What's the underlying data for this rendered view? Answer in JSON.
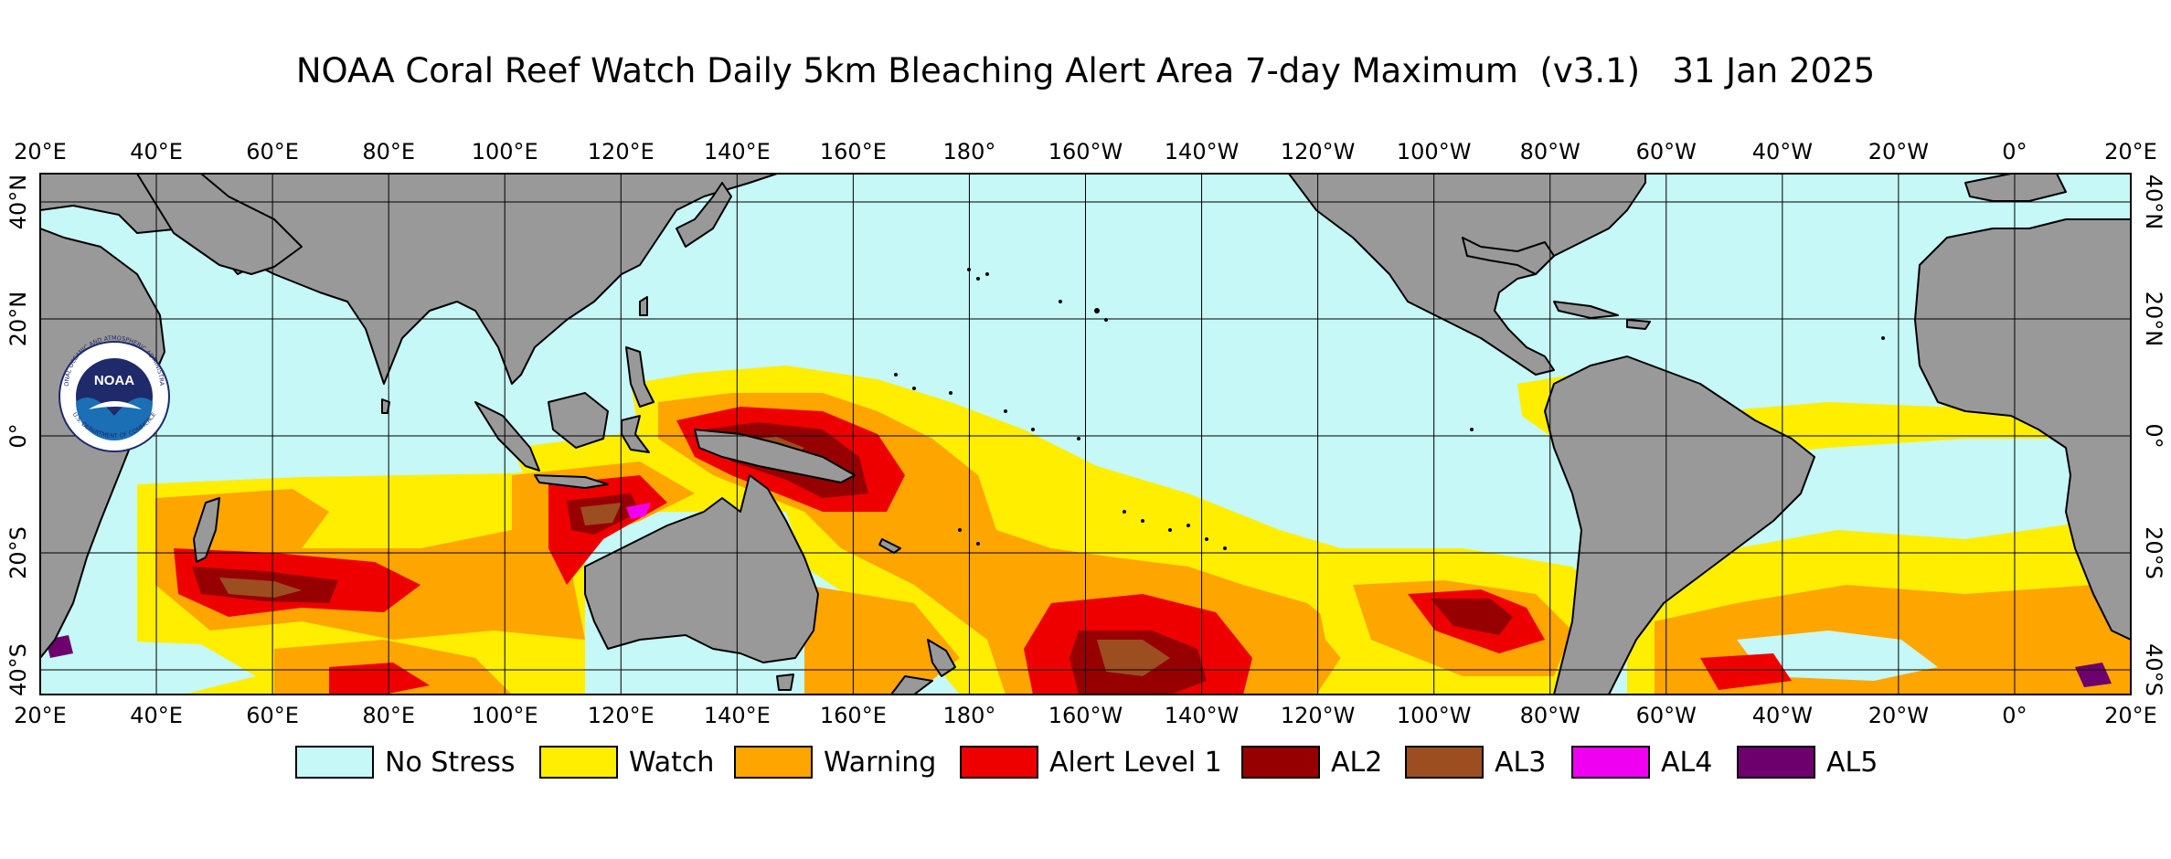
{
  "title": "NOAA Coral Reef Watch Daily 5km Bleaching Alert Area 7-day Maximum  (v3.1)   31 Jan 2025",
  "logo_text": {
    "mark": "NOAA",
    "ring_top": "NATIONAL OCEANIC AND ATMOSPHERIC ADMINISTRATION",
    "ring_bottom": "U.S. DEPARTMENT OF COMMERCE"
  },
  "lon_labels": [
    "20°E",
    "40°E",
    "60°E",
    "80°E",
    "100°E",
    "120°E",
    "140°E",
    "160°E",
    "180°",
    "160°W",
    "140°W",
    "120°W",
    "100°W",
    "80°W",
    "60°W",
    "40°W",
    "20°W",
    "0°",
    "20°E"
  ],
  "lat_labels": [
    "40°N",
    "20°N",
    "0°",
    "20°S",
    "40°S"
  ],
  "legend": [
    {
      "label": "No Stress",
      "color": "#c5f8f6"
    },
    {
      "label": "Watch",
      "color": "#ffee00"
    },
    {
      "label": "Warning",
      "color": "#ffa500"
    },
    {
      "label": "Alert Level 1",
      "color": "#ee0000"
    },
    {
      "label": "AL2",
      "color": "#960000"
    },
    {
      "label": "AL3",
      "color": "#9c4e21"
    },
    {
      "label": "AL4",
      "color": "#f000f0"
    },
    {
      "label": "AL5",
      "color": "#6e006e"
    }
  ],
  "colors": {
    "land": "#999999",
    "no_stress": "#c5f8f6",
    "watch": "#ffee00",
    "warning": "#ffa500",
    "alert1": "#ee0000",
    "al2": "#960000",
    "al3": "#9c4e21",
    "al4": "#f000f0",
    "al5": "#6e006e",
    "logo_navy": "#1e2a6a",
    "logo_blue": "#1b6fb5"
  }
}
